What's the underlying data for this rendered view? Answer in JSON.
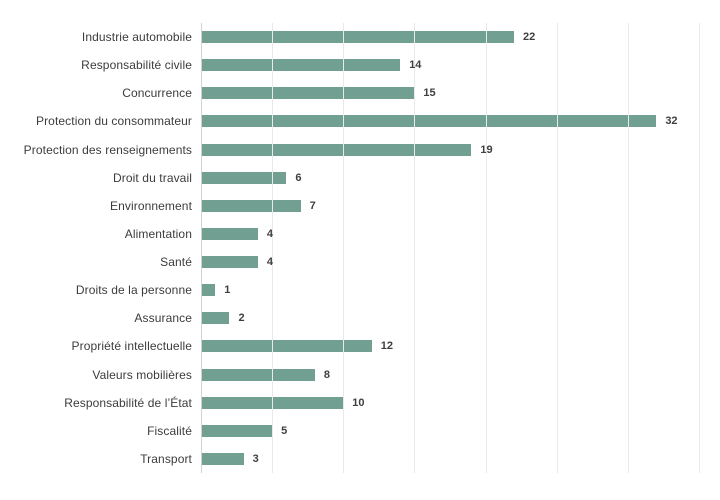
{
  "chart_data": {
    "type": "bar",
    "orientation": "horizontal",
    "title": "",
    "xlabel": "",
    "ylabel": "",
    "categories": [
      "Industrie automobile",
      "Responsabilité civile",
      "Concurrence",
      "Protection du consommateur",
      "Protection des renseignements",
      "Droit du travail",
      "Environnement",
      "Alimentation",
      "Santé",
      "Droits de la personne",
      "Assurance",
      "Propriété intellectuelle",
      "Valeurs mobilières",
      "Responsabilité de l’État",
      "Fiscalité",
      "Transport"
    ],
    "values": [
      22,
      14,
      15,
      32,
      19,
      6,
      7,
      4,
      4,
      1,
      2,
      12,
      8,
      10,
      5,
      3
    ],
    "xlim": [
      0,
      35
    ],
    "grid": true,
    "gridline_step": 5,
    "value_labels_shown": true,
    "legend_shown": false,
    "colors": {
      "bar": "#71A092",
      "category_label": "#3C3C3C",
      "value_label": "#3F3F3F",
      "axis_line": "#D2D2D2",
      "gridline": "#E9E9E9",
      "background": "#FFFFFF"
    }
  }
}
